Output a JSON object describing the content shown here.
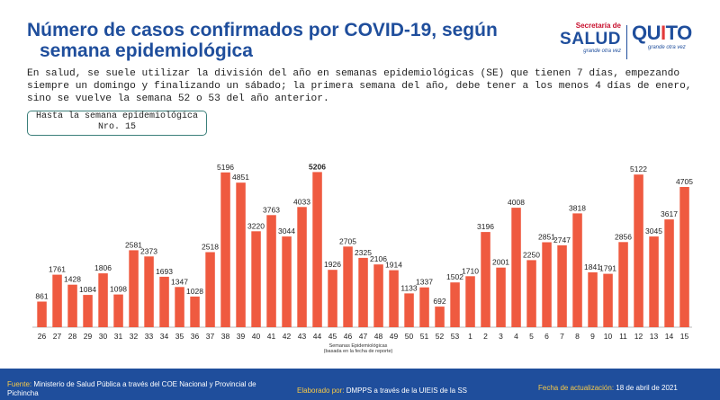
{
  "header": {
    "title_line1": "Número de casos confirmados por COVID-19, según",
    "title_line2": "semana epidemiológica"
  },
  "logos": {
    "salud_top": "Secretaría de",
    "salud_main": "SALUD",
    "salud_sig": "grande otra vez",
    "quito_qu": "QU",
    "quito_i": "I",
    "quito_to": "TO",
    "quito_sig": "grande otra vez"
  },
  "description": "En salud, se suele utilizar la división del año en semanas epidemiológicas (SE) que tienen 7 días, empezando siempre un domingo y finalizando un sábado; la primera semana del año, debe tener a los menos 4 días de enero, sino se vuelve la semana 52 o 53 del año anterior.",
  "week_box": {
    "line1": "Hasta la semana epidemiológica",
    "line2": "Nro. 15"
  },
  "chart_data": {
    "type": "bar",
    "categories": [
      "26",
      "27",
      "28",
      "29",
      "30",
      "31",
      "32",
      "33",
      "34",
      "35",
      "36",
      "37",
      "38",
      "39",
      "40",
      "41",
      "42",
      "43",
      "44",
      "45",
      "46",
      "47",
      "48",
      "49",
      "50",
      "51",
      "52",
      "53",
      "1",
      "2",
      "3",
      "4",
      "5",
      "6",
      "7",
      "8",
      "9",
      "10",
      "11",
      "12",
      "13",
      "14",
      "15"
    ],
    "values": [
      861,
      1761,
      1428,
      1084,
      1806,
      1098,
      2581,
      2373,
      1693,
      1347,
      1028,
      2518,
      5196,
      4851,
      3220,
      3763,
      3044,
      4033,
      5206,
      1926,
      2705,
      2325,
      2106,
      1914,
      1133,
      1337,
      692,
      1502,
      1710,
      3196,
      2001,
      4008,
      2250,
      2851,
      2747,
      3818,
      1841,
      1791,
      2856,
      5122,
      3045,
      3617,
      4705
    ],
    "highlight_index": 18,
    "xlabel_line1": "Semanas Epidemiológicas",
    "xlabel_line2": "(basada en la fecha de reporte)",
    "ylim": [
      0,
      5400
    ],
    "bar_color": "#ef5a40",
    "grid": false,
    "legend": "none"
  },
  "footer": {
    "source_label": "Fuente:",
    "source_text": "Ministerio de Salud Pública a través del COE Nacional y Provincial de Pichincha",
    "elab_label": "Elaborado por:",
    "elab_text": "DMPPS a través de la UIEIS de la SS",
    "update_label": "Fecha de actualización:",
    "update_text": "18 de abril de 2021"
  },
  "colors": {
    "title": "#1f4e9c",
    "footer_bg": "#1f4e9c",
    "footer_label": "#f7c948",
    "bar": "#ef5a40"
  }
}
